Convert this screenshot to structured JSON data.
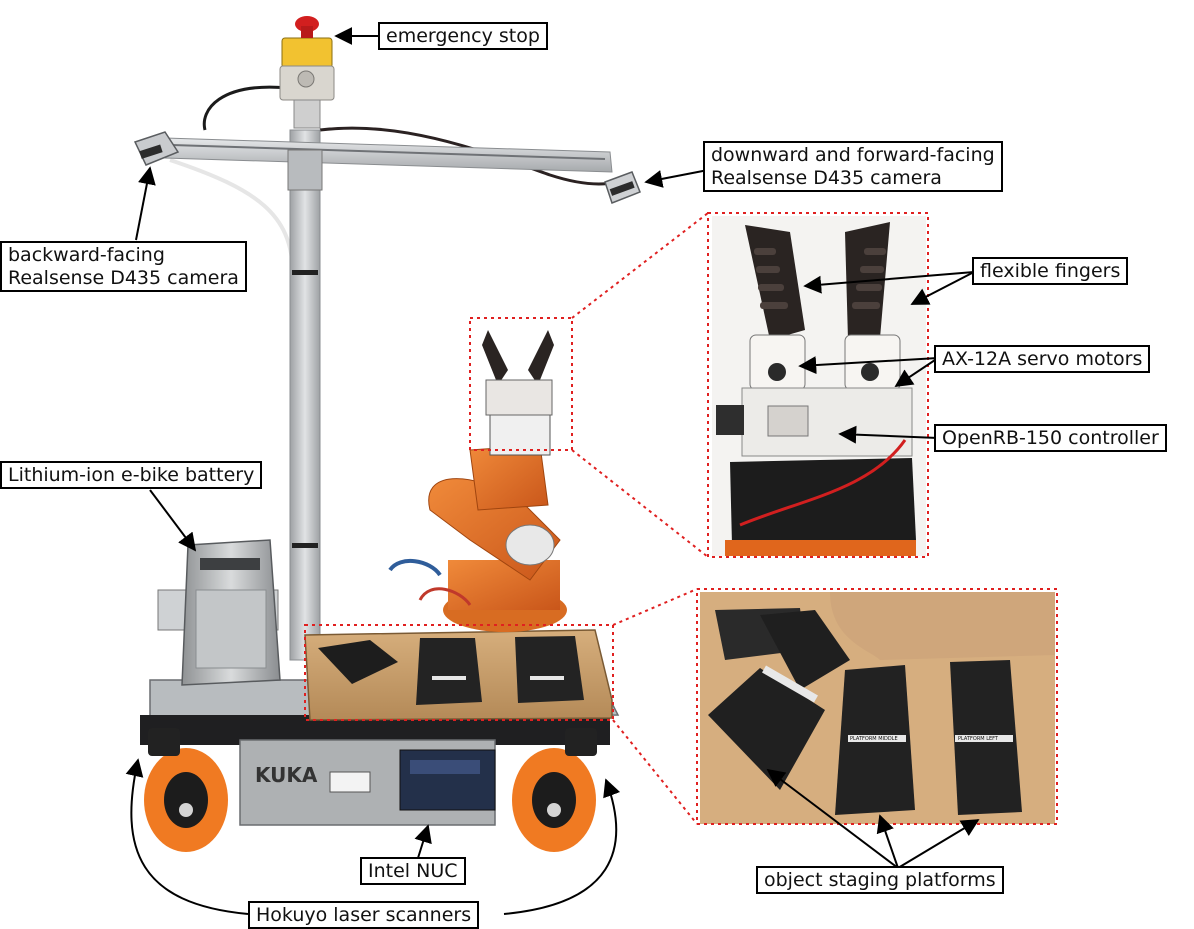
{
  "labels": {
    "emergency_stop": "emergency stop",
    "downward_camera": [
      "downward and forward-facing",
      "Realsense D435 camera"
    ],
    "backward_camera": [
      "backward-facing",
      "Realsense D435 camera"
    ],
    "flexible_fingers": "flexible fingers",
    "servo_motors": "AX-12A servo motors",
    "controller": "OpenRB-150 controller",
    "battery": "Lithium-ion e-bike battery",
    "intel_nuc": "Intel NUC",
    "laser_scanners": "Hokuyo laser scanners",
    "staging_platforms": "object staging platforms"
  },
  "base_logo": "KUKA",
  "platform_tags": [
    "PLATFORM MIDDLE",
    "PLATFORM LEFT"
  ],
  "colors": {
    "kuka_orange": "#e0661c",
    "callout_dashed": "#e02020",
    "aluminium": "#c9cbcd",
    "gripper_black": "#2a2422"
  }
}
